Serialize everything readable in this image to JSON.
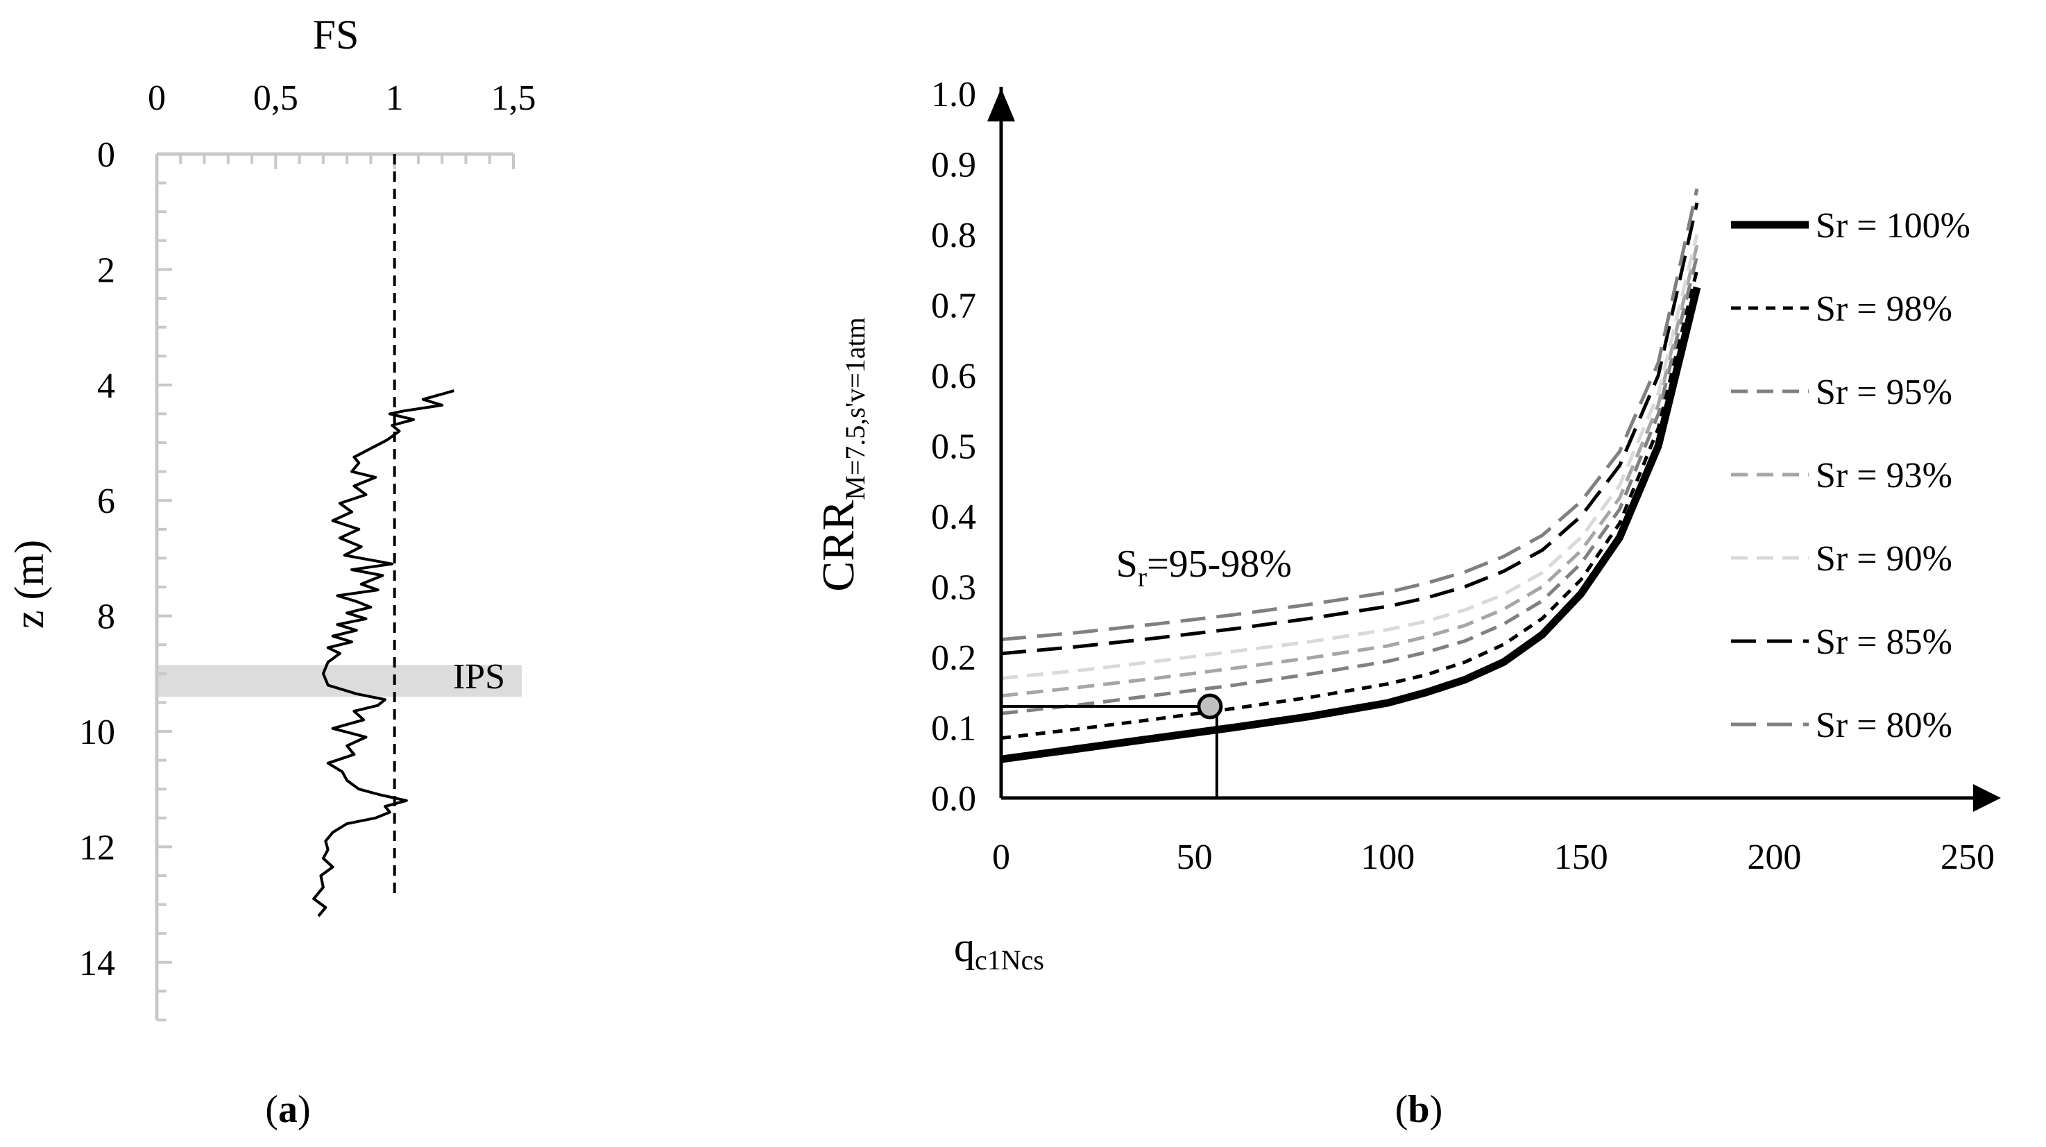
{
  "chart_data": [
    {
      "type": "line",
      "panel_label": "(a)",
      "panel_letter": "a",
      "xlabel": "FS",
      "ylabel": "z (m)",
      "xlim": [
        0,
        1.5
      ],
      "ylim": [
        0,
        15
      ],
      "x_ticks": [
        {
          "value": 0,
          "label": "0"
        },
        {
          "value": 0.5,
          "label": "0,5"
        },
        {
          "value": 1,
          "label": "1"
        },
        {
          "value": 1.5,
          "label": "1,5"
        }
      ],
      "y_ticks": [
        {
          "value": 0,
          "label": "0"
        },
        {
          "value": 2,
          "label": "2"
        },
        {
          "value": 4,
          "label": "4"
        },
        {
          "value": 6,
          "label": "6"
        },
        {
          "value": 8,
          "label": "8"
        },
        {
          "value": 10,
          "label": "10"
        },
        {
          "value": 12,
          "label": "12"
        },
        {
          "value": 14,
          "label": "14"
        }
      ],
      "reference_line": {
        "x": 1,
        "from_depth": 0,
        "to_depth": 12.9,
        "style": "dashed"
      },
      "band": {
        "label": "IPS",
        "from_depth": 8.85,
        "to_depth": 9.4,
        "color": "#dcdcdc"
      },
      "fs_profile": {
        "z": [
          4.1,
          4.25,
          4.35,
          4.45,
          4.5,
          4.6,
          4.7,
          4.8,
          4.95,
          5.1,
          5.25,
          5.35,
          5.5,
          5.6,
          5.75,
          5.9,
          6.05,
          6.2,
          6.35,
          6.5,
          6.65,
          6.8,
          6.95,
          7.1,
          7.2,
          7.3,
          7.45,
          7.55,
          7.65,
          7.75,
          7.85,
          7.95,
          8.05,
          8.15,
          8.25,
          8.35,
          8.45,
          8.55,
          8.65,
          8.8,
          9.0,
          9.2,
          9.35,
          9.45,
          9.55,
          9.65,
          9.8,
          9.95,
          10.1,
          10.25,
          10.4,
          10.55,
          10.7,
          10.85,
          11.0,
          11.1,
          11.2,
          11.3,
          11.4,
          11.5,
          11.6,
          11.75,
          11.9,
          12.05,
          12.2,
          12.35,
          12.5,
          12.7,
          12.9,
          13.05,
          13.2
        ],
        "fs": [
          1.25,
          1.12,
          1.2,
          1.04,
          0.98,
          1.08,
          0.99,
          1.02,
          0.97,
          0.9,
          0.83,
          0.85,
          0.82,
          0.92,
          0.83,
          0.88,
          0.77,
          0.82,
          0.74,
          0.85,
          0.77,
          0.86,
          0.79,
          0.99,
          0.82,
          0.95,
          0.86,
          0.93,
          0.76,
          0.84,
          0.9,
          0.8,
          0.88,
          0.76,
          0.84,
          0.74,
          0.82,
          0.72,
          0.77,
          0.72,
          0.7,
          0.72,
          0.84,
          0.96,
          0.93,
          0.83,
          0.87,
          0.74,
          0.88,
          0.8,
          0.83,
          0.72,
          0.78,
          0.8,
          0.85,
          0.94,
          1.05,
          0.96,
          0.98,
          0.92,
          0.8,
          0.74,
          0.71,
          0.72,
          0.7,
          0.74,
          0.69,
          0.7,
          0.66,
          0.71,
          0.68
        ]
      }
    },
    {
      "type": "line",
      "panel_label": "(b)",
      "panel_letter": "b",
      "xlabel": "q",
      "xlabel_sub": "c1Ncs",
      "ylabel": "CRR",
      "ylabel_sub": "M=7.5,s'v=1atm",
      "xlim": [
        0,
        250
      ],
      "ylim": [
        0,
        1.0
      ],
      "x_ticks": [
        0,
        50,
        100,
        150,
        200,
        250
      ],
      "y_ticks": [
        "0.0",
        "0.1",
        "0.2",
        "0.3",
        "0.4",
        "0.5",
        "0.6",
        "0.7",
        "0.8",
        "0.9",
        "1.0"
      ],
      "annotation": {
        "text": "S",
        "sub": "r",
        "rest": "=95-98%",
        "x": 15,
        "y": 0.33
      },
      "marker": {
        "x": 54,
        "y": 0.13
      },
      "x": [
        0,
        20,
        40,
        60,
        80,
        100,
        110,
        120,
        130,
        140,
        150,
        160,
        170,
        180
      ],
      "series": [
        {
          "name": "Sr = 100%",
          "color": "#000000",
          "dash": "",
          "width": 11,
          "values": [
            0.055,
            0.07,
            0.085,
            0.1,
            0.116,
            0.135,
            0.15,
            0.168,
            0.193,
            0.232,
            0.29,
            0.37,
            0.5,
            0.725
          ]
        },
        {
          "name": "Sr = 98%",
          "color": "#000000",
          "dash": "14 11",
          "width": 5,
          "values": [
            0.085,
            0.098,
            0.112,
            0.127,
            0.143,
            0.162,
            0.175,
            0.193,
            0.218,
            0.255,
            0.31,
            0.39,
            0.525,
            0.75
          ]
        },
        {
          "name": "Sr = 95%",
          "color": "#808080",
          "dash": "24 13",
          "width": 5,
          "values": [
            0.12,
            0.132,
            0.146,
            0.16,
            0.176,
            0.194,
            0.207,
            0.223,
            0.247,
            0.28,
            0.333,
            0.41,
            0.545,
            0.77
          ]
        },
        {
          "name": "Sr = 93%",
          "color": "#a6a6a6",
          "dash": "24 13",
          "width": 5,
          "values": [
            0.145,
            0.157,
            0.17,
            0.184,
            0.199,
            0.216,
            0.229,
            0.245,
            0.268,
            0.3,
            0.351,
            0.426,
            0.558,
            0.785
          ]
        },
        {
          "name": "Sr = 90%",
          "color": "#d9d9d9",
          "dash": "24 13",
          "width": 5,
          "values": [
            0.17,
            0.181,
            0.194,
            0.208,
            0.222,
            0.239,
            0.251,
            0.267,
            0.289,
            0.32,
            0.37,
            0.444,
            0.574,
            0.8
          ]
        },
        {
          "name": "Sr = 85%",
          "color": "#000000",
          "dash": "36 16",
          "width": 5,
          "values": [
            0.205,
            0.215,
            0.227,
            0.24,
            0.255,
            0.272,
            0.284,
            0.3,
            0.322,
            0.352,
            0.4,
            0.472,
            0.6,
            0.845
          ]
        },
        {
          "name": "Sr = 80%",
          "color": "#808080",
          "dash": "36 16",
          "width": 5,
          "values": [
            0.225,
            0.235,
            0.247,
            0.26,
            0.275,
            0.292,
            0.305,
            0.321,
            0.343,
            0.373,
            0.421,
            0.492,
            0.618,
            0.865
          ]
        }
      ]
    }
  ]
}
